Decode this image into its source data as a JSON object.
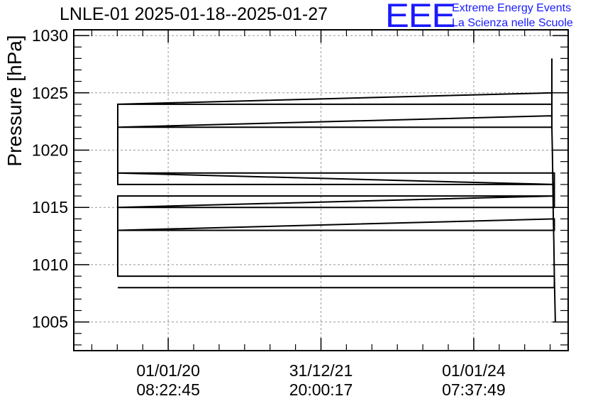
{
  "header": {
    "title": "LNLE-01 2025-01-18--2025-01-27",
    "logo_text": "EEE",
    "logo_line1": "Extreme Energy Events",
    "logo_line2": "La Scienza nelle Scuole",
    "logo_color": "#1a1aff"
  },
  "chart_data": {
    "type": "line",
    "title": "LNLE-01 2025-01-18--2025-01-27",
    "ylabel": "Pressure [hPa]",
    "xlabel": "",
    "ylim": [
      1002.5,
      1030.5
    ],
    "xlim": [
      0,
      1
    ],
    "grid": true,
    "yticks": [
      1005,
      1010,
      1015,
      1020,
      1025,
      1030
    ],
    "ytick_labels": [
      "1005",
      "1010",
      "1015",
      "1020",
      "1025",
      "1030"
    ],
    "xticks": [
      {
        "pos": 0.191,
        "line1": "01/01/20",
        "line2": "08:22:45"
      },
      {
        "pos": 0.5,
        "line1": "31/12/21",
        "line2": "20:00:17"
      },
      {
        "pos": 0.809,
        "line1": "01/01/24",
        "line2": "07:37:49"
      }
    ],
    "series": [
      {
        "values": [
          [
            0.089,
            1008
          ],
          [
            0.972,
            1008
          ],
          [
            0.972,
            1009
          ],
          [
            0.089,
            1009
          ],
          [
            0.089,
            1013
          ],
          [
            0.972,
            1013
          ],
          [
            0.972,
            1014
          ],
          [
            0.089,
            1013
          ],
          [
            0.089,
            1015
          ],
          [
            0.972,
            1015
          ],
          [
            0.972,
            1016
          ],
          [
            0.089,
            1015
          ],
          [
            0.089,
            1016
          ],
          [
            0.972,
            1016
          ],
          [
            0.972,
            1017
          ],
          [
            0.089,
            1017
          ],
          [
            0.089,
            1018
          ],
          [
            0.972,
            1018
          ],
          [
            0.972,
            1017
          ],
          [
            0.089,
            1018
          ],
          [
            0.089,
            1022
          ],
          [
            0.967,
            1022
          ],
          [
            0.967,
            1023
          ],
          [
            0.089,
            1022
          ],
          [
            0.089,
            1024
          ],
          [
            0.967,
            1024
          ],
          [
            0.967,
            1025
          ],
          [
            0.089,
            1024
          ]
        ]
      },
      {
        "values": [
          [
            0.967,
            1028
          ],
          [
            0.967,
            1022
          ],
          [
            0.968,
            1020
          ],
          [
            0.969,
            1017
          ],
          [
            0.97,
            1014
          ],
          [
            0.971,
            1012
          ],
          [
            0.972,
            1009
          ],
          [
            0.974,
            1005
          ]
        ]
      }
    ]
  }
}
